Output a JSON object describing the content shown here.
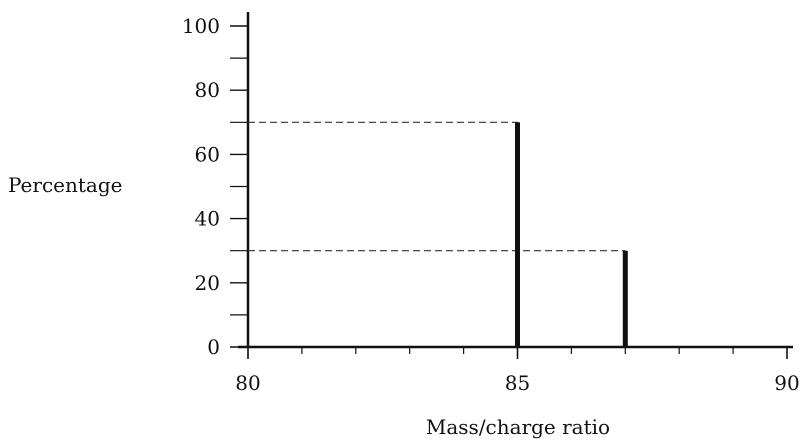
{
  "chart_data": {
    "type": "bar",
    "xlabel": "Mass/charge ratio",
    "ylabel": "Percentage",
    "xlim": [
      80,
      90
    ],
    "ylim": [
      0,
      100
    ],
    "x_ticks": [
      80,
      85,
      90
    ],
    "x_minor_ticks": [
      81,
      82,
      83,
      84,
      86,
      87,
      88,
      89
    ],
    "y_ticks": [
      0,
      20,
      40,
      60,
      80,
      100
    ],
    "y_minor_ticks": [
      10,
      30,
      50,
      70,
      90
    ],
    "x_tick_labels": [
      "80",
      "85",
      "90"
    ],
    "y_tick_labels": [
      "0",
      "20",
      "40",
      "60",
      "80",
      "100"
    ],
    "points": [
      {
        "x": 85,
        "y": 70
      },
      {
        "x": 87,
        "y": 30
      }
    ],
    "reference_lines": "dashed lines from y-axis to top of each peak",
    "grid": false,
    "colors": {
      "axis": "#111111",
      "bar": "#111111",
      "dashed": "#333333"
    }
  }
}
